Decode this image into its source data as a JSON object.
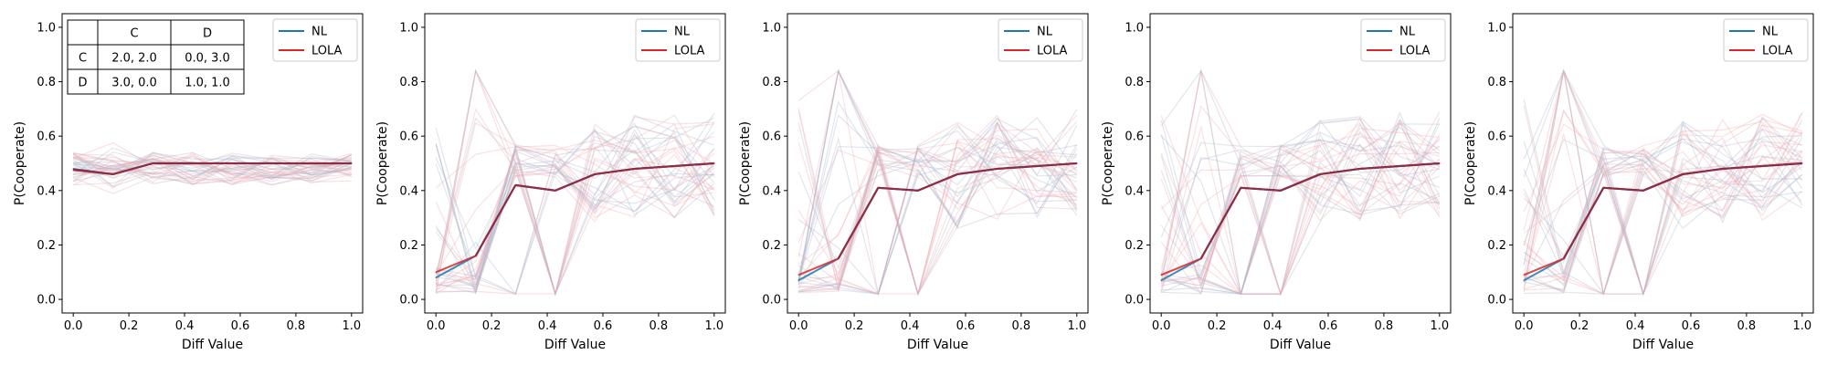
{
  "payoff_table": {
    "col_headers": [
      "C",
      "D"
    ],
    "rows": [
      {
        "label": "C",
        "cells": [
          "2.0, 2.0",
          "0.0, 3.0"
        ]
      },
      {
        "label": "D",
        "cells": [
          "3.0, 0.0",
          "1.0, 1.0"
        ]
      }
    ]
  },
  "colors": {
    "nl": "#1f77b4",
    "lola": "#d62728",
    "overlap": "#8b2e45",
    "faint_nl": "#aab4cc",
    "faint_lola": "#f0a8ae"
  },
  "chart_data": [
    {
      "type": "line",
      "xlabel": "Diff Value",
      "ylabel": "P(Cooperate)",
      "xlim": [
        -0.04,
        1.04
      ],
      "ylim": [
        -0.05,
        1.05
      ],
      "xticks": [
        "0.0",
        "0.2",
        "0.4",
        "0.6",
        "0.8",
        "1.0"
      ],
      "yticks": [
        "0.0",
        "0.2",
        "0.4",
        "0.6",
        "0.8",
        "1.0"
      ],
      "legend": "top-right",
      "x": [
        0.0,
        0.143,
        0.286,
        0.429,
        0.571,
        0.714,
        0.857,
        1.0
      ],
      "series": [
        {
          "name": "NL",
          "values": [
            0.48,
            0.46,
            0.5,
            0.5,
            0.5,
            0.5,
            0.5,
            0.5
          ]
        },
        {
          "name": "LOLA",
          "values": [
            0.475,
            0.46,
            0.5,
            0.5,
            0.5,
            0.5,
            0.5,
            0.5
          ]
        }
      ]
    },
    {
      "type": "line",
      "xlabel": "Diff Value",
      "ylabel": "P(Cooperate)",
      "xlim": [
        -0.04,
        1.04
      ],
      "ylim": [
        -0.05,
        1.05
      ],
      "xticks": [
        "0.0",
        "0.2",
        "0.4",
        "0.6",
        "0.8",
        "1.0"
      ],
      "yticks": [
        "0.0",
        "0.2",
        "0.4",
        "0.6",
        "0.8",
        "1.0"
      ],
      "legend": "top-right",
      "x": [
        0.0,
        0.143,
        0.286,
        0.429,
        0.571,
        0.714,
        0.857,
        1.0
      ],
      "series": [
        {
          "name": "NL",
          "values": [
            0.08,
            0.16,
            0.42,
            0.4,
            0.46,
            0.48,
            0.49,
            0.5
          ]
        },
        {
          "name": "LOLA",
          "values": [
            0.1,
            0.16,
            0.42,
            0.4,
            0.46,
            0.48,
            0.49,
            0.5
          ]
        }
      ]
    },
    {
      "type": "line",
      "xlabel": "Diff Value",
      "ylabel": "P(Cooperate)",
      "xlim": [
        -0.04,
        1.04
      ],
      "ylim": [
        -0.05,
        1.05
      ],
      "xticks": [
        "0.0",
        "0.2",
        "0.4",
        "0.6",
        "0.8",
        "1.0"
      ],
      "yticks": [
        "0.0",
        "0.2",
        "0.4",
        "0.6",
        "0.8",
        "1.0"
      ],
      "legend": "top-right",
      "x": [
        0.0,
        0.143,
        0.286,
        0.429,
        0.571,
        0.714,
        0.857,
        1.0
      ],
      "series": [
        {
          "name": "NL",
          "values": [
            0.07,
            0.15,
            0.41,
            0.4,
            0.46,
            0.48,
            0.49,
            0.5
          ]
        },
        {
          "name": "LOLA",
          "values": [
            0.09,
            0.15,
            0.41,
            0.4,
            0.46,
            0.48,
            0.49,
            0.5
          ]
        }
      ]
    },
    {
      "type": "line",
      "xlabel": "Diff Value",
      "ylabel": "P(Cooperate)",
      "xlim": [
        -0.04,
        1.04
      ],
      "ylim": [
        -0.05,
        1.05
      ],
      "xticks": [
        "0.0",
        "0.2",
        "0.4",
        "0.6",
        "0.8",
        "1.0"
      ],
      "yticks": [
        "0.0",
        "0.2",
        "0.4",
        "0.6",
        "0.8",
        "1.0"
      ],
      "legend": "top-right",
      "x": [
        0.0,
        0.143,
        0.286,
        0.429,
        0.571,
        0.714,
        0.857,
        1.0
      ],
      "series": [
        {
          "name": "NL",
          "values": [
            0.07,
            0.15,
            0.41,
            0.4,
            0.46,
            0.48,
            0.49,
            0.5
          ]
        },
        {
          "name": "LOLA",
          "values": [
            0.09,
            0.15,
            0.41,
            0.4,
            0.46,
            0.48,
            0.49,
            0.5
          ]
        }
      ]
    },
    {
      "type": "line",
      "xlabel": "Diff Value",
      "ylabel": "P(Cooperate)",
      "xlim": [
        -0.04,
        1.04
      ],
      "ylim": [
        -0.05,
        1.05
      ],
      "xticks": [
        "0.0",
        "0.2",
        "0.4",
        "0.6",
        "0.8",
        "1.0"
      ],
      "yticks": [
        "0.0",
        "0.2",
        "0.4",
        "0.6",
        "0.8",
        "1.0"
      ],
      "legend": "top-right",
      "x": [
        0.0,
        0.143,
        0.286,
        0.429,
        0.571,
        0.714,
        0.857,
        1.0
      ],
      "series": [
        {
          "name": "NL",
          "values": [
            0.07,
            0.15,
            0.41,
            0.4,
            0.46,
            0.48,
            0.49,
            0.5
          ]
        },
        {
          "name": "LOLA",
          "values": [
            0.09,
            0.15,
            0.41,
            0.4,
            0.46,
            0.48,
            0.49,
            0.5
          ]
        }
      ]
    }
  ]
}
